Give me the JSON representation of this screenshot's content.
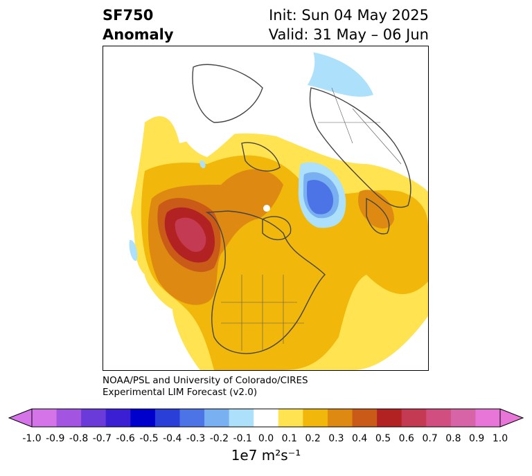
{
  "title": {
    "line1_left": "SF750",
    "line2_left": "Anomaly",
    "line1_right": "Init: Sun 04 May 2025",
    "line2_right": "Valid: 31 May – 06 Jun"
  },
  "credit": {
    "line1": "NOAA/PSL and University of Colorado/CIRES",
    "line2": "Experimental LIM Forecast (v2.0)"
  },
  "colorbar": {
    "units": "1e7 m²s⁻¹",
    "tick_labels": [
      "-1.0",
      "-0.9",
      "-0.8",
      "-0.7",
      "-0.6",
      "-0.5",
      "-0.4",
      "-0.3",
      "-0.2",
      "-0.1",
      "0.0",
      "0.1",
      "0.2",
      "0.3",
      "0.4",
      "0.5",
      "0.6",
      "0.7",
      "0.8",
      "0.9",
      "1.0"
    ],
    "levels": [
      -1.0,
      -0.9,
      -0.8,
      -0.7,
      -0.6,
      -0.5,
      -0.4,
      -0.3,
      -0.2,
      -0.1,
      0.1,
      0.2,
      0.3,
      0.4,
      0.5,
      0.6,
      0.7,
      0.8,
      0.9,
      1.0
    ],
    "colors": [
      "#d573e8",
      "#a354e0",
      "#6a3bd8",
      "#3a1fd3",
      "#0000cc",
      "#2a3fd8",
      "#4d74e6",
      "#78b0f2",
      "#ade0fa",
      "#ffffff",
      "#ffe350",
      "#f1b80b",
      "#de8a12",
      "#c95a17",
      "#b32222",
      "#c43a52",
      "#d04f80",
      "#d864a8",
      "#e876d8"
    ],
    "min_extend_color": "#d573e8",
    "max_extend_color": "#e876d8"
  },
  "map": {
    "projection": "north polar stereographic",
    "field": "SF750 anomaly"
  }
}
